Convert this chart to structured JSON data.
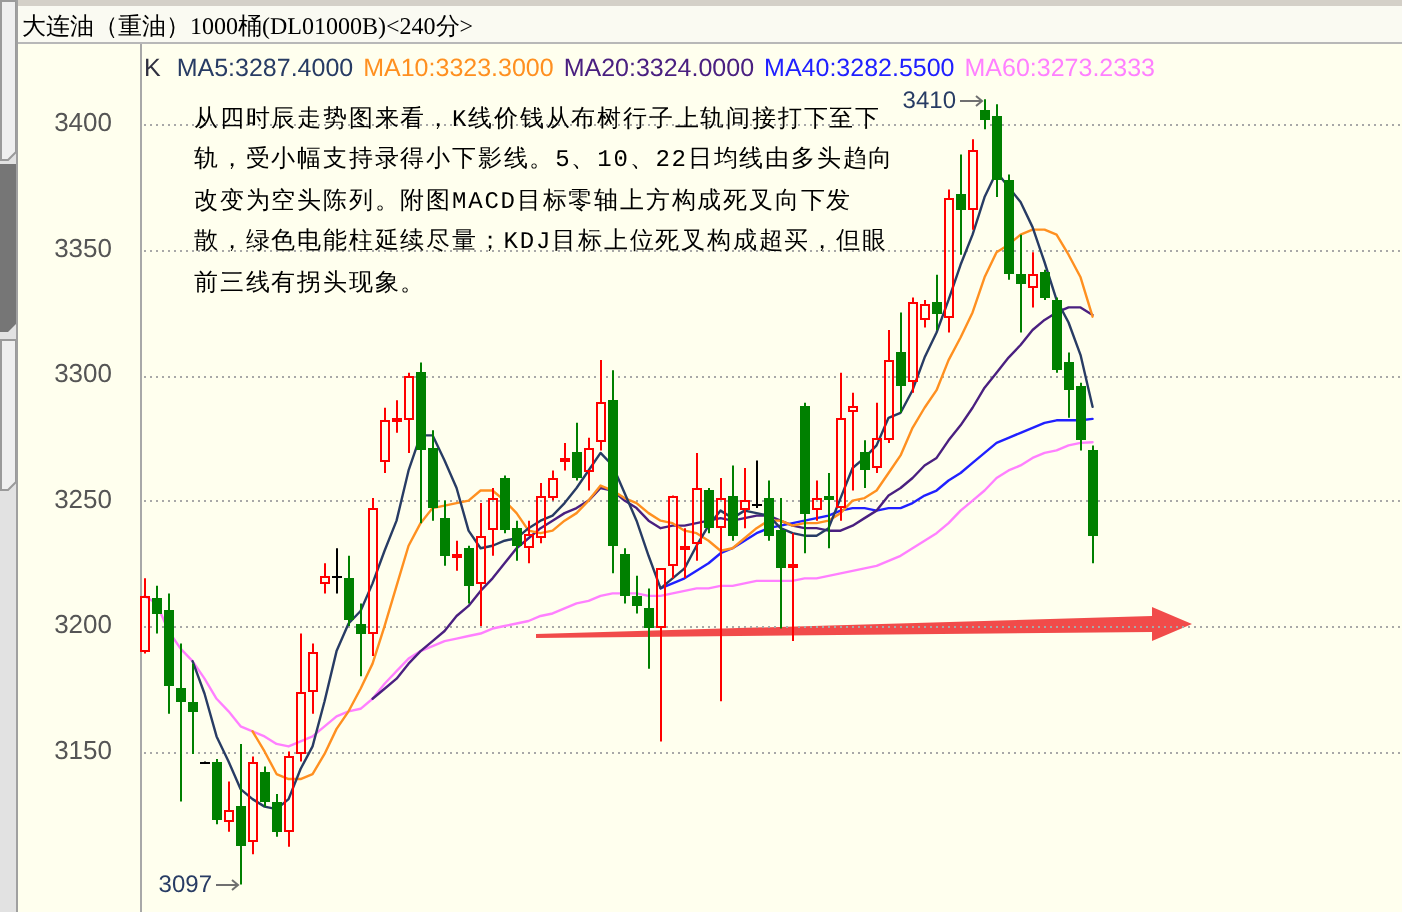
{
  "chart_data": {
    "type": "candlestick",
    "title": "大连油（重油）1000桶(DL01000B)<240分>",
    "legend_title": "K",
    "legend": "top left",
    "grid": "y",
    "tick_labels": "y",
    "ylim": [
      3086,
      3432
    ],
    "yticks": [
      3150,
      3200,
      3250,
      3300,
      3350,
      3400
    ],
    "categories": [
      null,
      null,
      null,
      null,
      null,
      null,
      null,
      null,
      null,
      null,
      null,
      null,
      null,
      null,
      null,
      null,
      null,
      null,
      null,
      null,
      null,
      null,
      null,
      null,
      null,
      null,
      null,
      null,
      null,
      null,
      null,
      null,
      null,
      null,
      null,
      null,
      null,
      null,
      null,
      null,
      null,
      null,
      null,
      null,
      null,
      null,
      null,
      null,
      null,
      null,
      null,
      null,
      null,
      null,
      null,
      null,
      null,
      null,
      null,
      null,
      null,
      null,
      null,
      null,
      null,
      null,
      null,
      null,
      null,
      null,
      null,
      null,
      null,
      null,
      null,
      null,
      null,
      null,
      null,
      null
    ],
    "ohlc": [
      [
        3190,
        3219,
        3189,
        3212
      ],
      [
        3211,
        3216,
        3197,
        3205
      ],
      [
        3206,
        3213,
        3165,
        3176
      ],
      [
        3175,
        3193,
        3130,
        3170
      ],
      [
        3170,
        3185,
        3149,
        3166
      ],
      [
        3146,
        3146,
        3146,
        3146
      ],
      [
        3146,
        3147,
        3121,
        3123
      ],
      [
        3122,
        3138,
        3118,
        3127
      ],
      [
        3128,
        3153,
        3097,
        3112
      ],
      [
        3114,
        3148,
        3109,
        3146
      ],
      [
        3142,
        3144,
        3128,
        3130
      ],
      [
        3130,
        3133,
        3116,
        3118
      ],
      [
        3118,
        3150,
        3112,
        3148
      ],
      [
        3149,
        3197,
        3146,
        3174
      ],
      [
        3174,
        3193,
        3165,
        3190
      ],
      [
        3217,
        3225,
        3213,
        3220
      ],
      [
        3220,
        3231,
        3213,
        3220
      ],
      [
        3219,
        3228,
        3200,
        3202
      ],
      [
        3201,
        3209,
        3180,
        3197
      ],
      [
        3197,
        3251,
        3188,
        3247
      ],
      [
        3265,
        3287,
        3261,
        3282
      ],
      [
        3281,
        3290,
        3277,
        3283
      ],
      [
        3282,
        3301,
        3269,
        3300
      ],
      [
        3301,
        3305,
        3241,
        3270
      ],
      [
        3271,
        3278,
        3242,
        3247
      ],
      [
        3243,
        3250,
        3224,
        3228
      ],
      [
        3228,
        3234,
        3222,
        3229
      ],
      [
        3231,
        3232,
        3209,
        3216
      ],
      [
        3217,
        3249,
        3200,
        3236
      ],
      [
        3238,
        3255,
        3228,
        3251
      ],
      [
        3259,
        3260,
        3237,
        3238
      ],
      [
        3239,
        3242,
        3226,
        3232
      ],
      [
        3231,
        3242,
        3225,
        3237
      ],
      [
        3235,
        3257,
        3233,
        3252
      ],
      [
        3251,
        3262,
        3250,
        3259
      ],
      [
        3266,
        3273,
        3262,
        3267
      ],
      [
        3269,
        3281,
        3258,
        3259
      ],
      [
        3261,
        3275,
        3254,
        3271
      ],
      [
        3273,
        3306,
        3270,
        3289
      ],
      [
        3290,
        3302,
        3221,
        3232
      ],
      [
        3229,
        3231,
        3209,
        3212
      ],
      [
        3212,
        3220,
        3205,
        3208
      ],
      [
        3207,
        3215,
        3183,
        3199
      ],
      [
        3199,
        3223,
        3154,
        3223
      ],
      [
        3224,
        3252,
        3219,
        3252
      ],
      [
        3231,
        3239,
        3219,
        3232
      ],
      [
        3233,
        3269,
        3226,
        3255
      ],
      [
        3254,
        3255,
        3237,
        3239
      ],
      [
        3239,
        3259,
        3170,
        3251
      ],
      [
        3252,
        3264,
        3234,
        3236
      ],
      [
        3246,
        3263,
        3239,
        3250
      ],
      [
        3249,
        3266,
        3247,
        3249
      ],
      [
        3251,
        3258,
        3234,
        3236
      ],
      [
        3238,
        3251,
        3199,
        3223
      ],
      [
        3224,
        3237,
        3194,
        3225
      ],
      [
        3288,
        3289,
        3229,
        3245
      ],
      [
        3246,
        3258,
        3242,
        3251
      ],
      [
        3252,
        3261,
        3231,
        3250
      ],
      [
        3247,
        3301,
        3242,
        3283
      ],
      [
        3285,
        3293,
        3254,
        3288
      ],
      [
        3269,
        3274,
        3255,
        3262
      ],
      [
        3263,
        3289,
        3261,
        3275
      ],
      [
        3274,
        3318,
        3273,
        3306
      ],
      [
        3309,
        3325,
        3285,
        3296
      ],
      [
        3297,
        3331,
        3293,
        3329
      ],
      [
        3322,
        3330,
        3319,
        3328
      ],
      [
        3329,
        3340,
        3318,
        3324
      ],
      [
        3323,
        3374,
        3317,
        3371
      ],
      [
        3372,
        3388,
        3348,
        3366
      ],
      [
        3366,
        3394,
        3358,
        3390
      ],
      [
        3406,
        3410,
        3398,
        3402
      ],
      [
        3403,
        3408,
        3371,
        3378
      ],
      [
        3378,
        3380,
        3338,
        3340
      ],
      [
        3340,
        3356,
        3317,
        3336
      ],
      [
        3335,
        3349,
        3327,
        3340
      ],
      [
        3341,
        3342,
        3330,
        3331
      ],
      [
        3330,
        3331,
        3301,
        3302
      ],
      [
        3305,
        3309,
        3283,
        3294
      ],
      [
        3296,
        3297,
        3270,
        3274
      ],
      [
        3270,
        3272,
        3225,
        3236
      ]
    ],
    "series": [
      {
        "type": "line",
        "name": "MA5:3287.4000",
        "color": "#283c64",
        "values": [
          null,
          null,
          null,
          null,
          3186,
          3173,
          3156,
          3146,
          3135,
          3131,
          3128,
          3127,
          3131,
          3143,
          3152,
          3170,
          3190,
          3201,
          3206,
          3217,
          3230,
          3242,
          3262,
          3276,
          3276,
          3266,
          3255,
          3238,
          3231,
          3232,
          3234,
          3235,
          3239,
          3242,
          3244,
          3249,
          3255,
          3262,
          3269,
          3264,
          3253,
          3242,
          3228,
          3215,
          3219,
          3223,
          3232,
          3240,
          3246,
          3243,
          3246,
          3245,
          3244,
          3239,
          3237,
          3236,
          3236,
          3239,
          3251,
          3263,
          3267,
          3272,
          3283,
          3285,
          3294,
          3307,
          3317,
          3330,
          3344,
          3356,
          3371,
          3381,
          3375,
          3369,
          3359,
          3345,
          3330,
          3321,
          3308,
          3287.4
        ]
      },
      {
        "type": "line",
        "name": "MA10:3323.3000",
        "color": "#ff9020",
        "values": [
          null,
          null,
          null,
          null,
          null,
          null,
          null,
          null,
          null,
          3158,
          3150,
          3141,
          3139,
          3139,
          3141,
          3149,
          3159,
          3166,
          3175,
          3185,
          3200,
          3216,
          3232,
          3241,
          3247,
          3248,
          3249,
          3250,
          3254,
          3254,
          3250,
          3245,
          3238,
          3237,
          3238,
          3242,
          3245,
          3250,
          3256,
          3254,
          3251,
          3249,
          3245,
          3242,
          3241,
          3238,
          3237,
          3234,
          3230,
          3231,
          3235,
          3239,
          3242,
          3242,
          3240,
          3241,
          3241,
          3242,
          3245,
          3250,
          3251,
          3254,
          3261,
          3268,
          3279,
          3287,
          3294,
          3306,
          3315,
          3325,
          3339,
          3349,
          3352,
          3356,
          3358,
          3358,
          3356,
          3348,
          3339,
          3323.3
        ]
      },
      {
        "type": "line",
        "name": "MA20:3324.0000",
        "color": "#4a2080",
        "values": [
          null,
          null,
          null,
          null,
          null,
          null,
          null,
          null,
          null,
          null,
          null,
          null,
          null,
          null,
          null,
          null,
          null,
          null,
          null,
          3171,
          3175,
          3179,
          3185,
          3190,
          3194,
          3198,
          3204,
          3208,
          3214,
          3219,
          3225,
          3231,
          3235,
          3239,
          3242,
          3245,
          3247,
          3250,
          3255,
          3254,
          3250,
          3247,
          3242,
          3239,
          3240,
          3240,
          3241,
          3242,
          3243,
          3242,
          3243,
          3244,
          3244,
          3242,
          3240,
          3239,
          3239,
          3238,
          3238,
          3240,
          3243,
          3246,
          3252,
          3255,
          3259,
          3264,
          3267,
          3274,
          3280,
          3287,
          3295,
          3301,
          3307,
          3312,
          3318,
          3322,
          3325,
          3327,
          3327,
          3324
        ]
      },
      {
        "type": "line",
        "name": "MA40:3282.5500",
        "color": "#2020ff",
        "values": [
          null,
          null,
          null,
          null,
          null,
          null,
          null,
          null,
          null,
          null,
          null,
          null,
          null,
          null,
          null,
          null,
          null,
          null,
          null,
          null,
          null,
          null,
          null,
          null,
          null,
          null,
          null,
          null,
          null,
          null,
          null,
          null,
          null,
          null,
          null,
          null,
          null,
          null,
          null,
          null,
          null,
          null,
          null,
          3215,
          3217,
          3219,
          3222,
          3225,
          3229,
          3231,
          3234,
          3237,
          3239,
          3240,
          3241,
          3242,
          3243,
          3244,
          3246,
          3247,
          3247,
          3246,
          3247,
          3247,
          3249,
          3252,
          3254,
          3258,
          3261,
          3265,
          3269,
          3273,
          3275,
          3277,
          3279,
          3281,
          3282,
          3282,
          3282,
          3282.55
        ]
      },
      {
        "type": "line",
        "name": "MA60:3273.2333",
        "color": "#ff80ff",
        "values": [
          3212,
          3209,
          3198,
          3191,
          3186,
          3179,
          3171,
          3166,
          3160,
          3158,
          3156,
          3153,
          3152,
          3154,
          3156,
          3160,
          3164,
          3166,
          3167,
          3171,
          3177,
          3182,
          3187,
          3190,
          3192,
          3194,
          3195,
          3196,
          3197,
          3199,
          3200,
          3201,
          3202,
          3204,
          3205,
          3207,
          3209,
          3210,
          3212,
          3213,
          3213,
          3213,
          3212,
          3212,
          3213,
          3214,
          3215,
          3215,
          3216,
          3216,
          3217,
          3218,
          3218,
          3218,
          3218,
          3219,
          3219,
          3220,
          3221,
          3222,
          3223,
          3224,
          3226,
          3228,
          3231,
          3234,
          3237,
          3241,
          3246,
          3250,
          3254,
          3259,
          3262,
          3264,
          3267,
          3269,
          3270,
          3272,
          3273,
          3273.2333
        ]
      }
    ],
    "annotations": [
      "从四时辰走势图来看，K线价钱从布树行子上轨间接打下至下轨，受小幅支持录得小下影线。5、10、22日均线由多头趋向改变为空头陈列。附图MACD目标零轴上方构成死叉向下发散，绿色电能柱延续尽量；KDJ目标上位死叉构成超买，但眼前三线有拐头现象。",
      "3410",
      "3097"
    ]
  }
}
